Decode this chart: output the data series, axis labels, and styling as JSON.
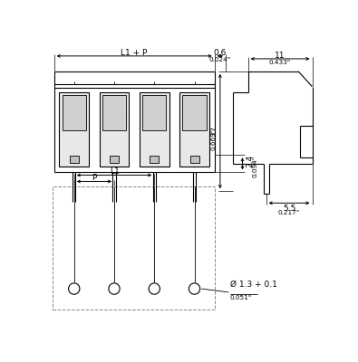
{
  "bg_color": "#ffffff",
  "line_color": "#000000",
  "gray_color": "#888888",
  "figsize": [
    3.95,
    4.0
  ],
  "dpi": 100,
  "annotations": {
    "L1_P_label": "L1 + P",
    "dim_06": "0.6",
    "dim_024": "0.024\"",
    "dim_11": "11",
    "dim_0433": "0.433\"",
    "dim_24": "2.4",
    "dim_0094": "0.094\"",
    "dim_17": "17",
    "dim_0669": "0.669\"",
    "dim_55": "5.5",
    "dim_0217": "0.217\"",
    "L1_label": "L1",
    "P_label": "P",
    "hole_dim": "Ø 1.3 + 0.1",
    "hole_dim2": "0.051\""
  }
}
